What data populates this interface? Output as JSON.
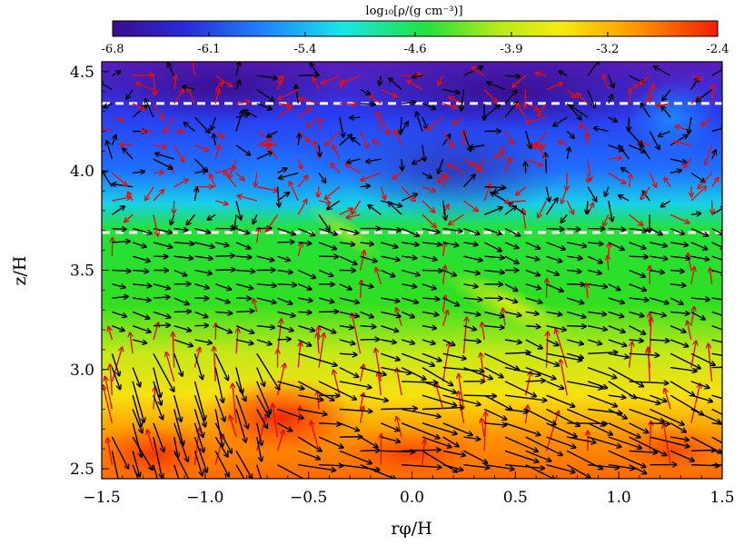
{
  "colorbar": {
    "label": "log₁₀[ρ/(g cm⁻³)]",
    "ticks": [
      -6.8,
      -6.1,
      -5.4,
      -4.6,
      -3.9,
      -3.2,
      -2.4
    ],
    "tick_labels": [
      "-6.8",
      "-6.1",
      "-5.4",
      "-4.6",
      "-3.9",
      "-3.2",
      "-2.4"
    ],
    "range": [
      -6.8,
      -2.4
    ]
  },
  "chart_data": {
    "type": "heatmap",
    "title": "",
    "xlabel": "rφ/H",
    "ylabel": "z/H",
    "xlim": [
      -1.5,
      1.5
    ],
    "ylim": [
      2.45,
      4.55
    ],
    "xticks": [
      -1.5,
      -1.0,
      -0.5,
      0.0,
      0.5,
      1.0,
      1.5
    ],
    "xtick_labels": [
      "−1.5",
      "−1.0",
      "−0.5",
      "0.0",
      "0.5",
      "1.0",
      "1.5"
    ],
    "yticks": [
      2.5,
      3.0,
      3.5,
      4.0,
      4.5
    ],
    "ytick_labels": [
      "2.5",
      "3.0",
      "3.5",
      "4.0",
      "4.5"
    ],
    "colormap": "rainbow",
    "colors": {
      "low": "#3a0c8c",
      "mid": "#20e020",
      "high": "#f01e00"
    },
    "reference_lines": [
      {
        "axis": "y",
        "value": 4.34,
        "style": "dashed",
        "color": "#ffffff"
      },
      {
        "axis": "y",
        "value": 3.69,
        "style": "dashed",
        "color": "#ffffff"
      }
    ],
    "vector_field": {
      "arrow_colors": {
        "upward": "#e01010",
        "downward": "#000000"
      },
      "grid_spacing_x": 0.1,
      "grid_spacing_z": 0.07
    }
  }
}
